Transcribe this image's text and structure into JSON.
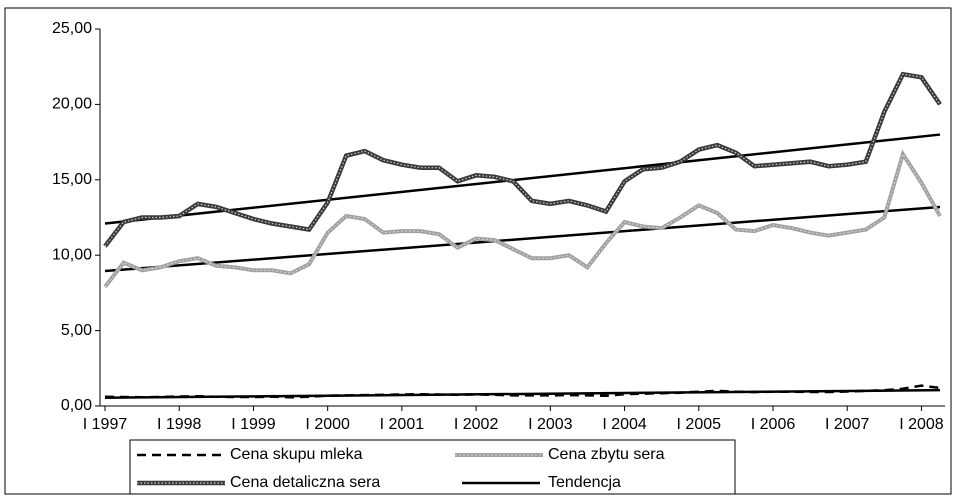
{
  "chart_data": {
    "type": "line",
    "categories": [
      "I 1997",
      null,
      null,
      null,
      "I 1998",
      null,
      null,
      null,
      "I 1999",
      null,
      null,
      null,
      "I 2000",
      null,
      null,
      null,
      "I 2001",
      null,
      null,
      null,
      "I 2002",
      null,
      null,
      null,
      "I 2003",
      null,
      null,
      null,
      "I 2004",
      null,
      null,
      null,
      "I 2005",
      null,
      null,
      null,
      "I 2006",
      null,
      null,
      null,
      "I 2007",
      null,
      null,
      null,
      "I 2008",
      null
    ],
    "series": [
      {
        "name": "Cena skupu mleka",
        "color": "#000000",
        "style": "dashed",
        "values": [
          0.62,
          0.6,
          0.58,
          0.6,
          0.63,
          0.64,
          0.62,
          0.6,
          0.6,
          0.62,
          0.58,
          0.62,
          0.68,
          0.7,
          0.72,
          0.74,
          0.76,
          0.78,
          0.76,
          0.74,
          0.76,
          0.74,
          0.7,
          0.7,
          0.7,
          0.72,
          0.7,
          0.68,
          0.78,
          0.82,
          0.85,
          0.88,
          0.95,
          1.0,
          0.95,
          0.92,
          0.95,
          0.95,
          0.93,
          0.93,
          0.96,
          1.0,
          1.05,
          1.15,
          1.35,
          1.2
        ]
      },
      {
        "name": "Cena zbytu sera",
        "color": "#a0a0a0",
        "style": "solid",
        "values": [
          7.9,
          9.5,
          9.0,
          9.2,
          9.6,
          9.8,
          9.3,
          9.2,
          9.0,
          9.0,
          8.8,
          9.4,
          11.5,
          12.6,
          12.4,
          11.5,
          11.6,
          11.6,
          11.4,
          10.5,
          11.1,
          11.0,
          10.4,
          9.8,
          9.8,
          10.0,
          9.2,
          10.8,
          12.2,
          11.9,
          11.8,
          12.5,
          13.3,
          12.8,
          11.7,
          11.6,
          12.0,
          11.8,
          11.5,
          11.3,
          11.5,
          11.7,
          12.5,
          16.7,
          14.8,
          12.6
        ]
      },
      {
        "name": "Cena detaliczna sera",
        "color": "#3a3a3a",
        "style": "checkered",
        "values": [
          10.6,
          12.2,
          12.5,
          12.5,
          12.6,
          13.4,
          13.2,
          12.8,
          12.4,
          12.1,
          11.9,
          11.7,
          13.5,
          16.6,
          16.9,
          16.3,
          16.0,
          15.8,
          15.8,
          14.9,
          15.3,
          15.2,
          14.9,
          13.6,
          13.4,
          13.6,
          13.3,
          12.9,
          14.9,
          15.7,
          15.8,
          16.2,
          17.0,
          17.3,
          16.8,
          15.9,
          16.0,
          16.1,
          16.2,
          15.9,
          16.0,
          16.2,
          19.5,
          22.0,
          21.8,
          20.0
        ]
      }
    ],
    "trend_name": "Tendencja",
    "trend_color": "#000000",
    "trendlines": [
      {
        "values": [
          0.55,
          1.05
        ]
      },
      {
        "values": [
          8.95,
          13.2
        ]
      },
      {
        "values": [
          12.1,
          18.0
        ]
      }
    ],
    "ylim": [
      0,
      25
    ],
    "yticks": [
      {
        "value": 0,
        "label": "0,00"
      },
      {
        "value": 5,
        "label": "5,00"
      },
      {
        "value": 10,
        "label": "10,00"
      },
      {
        "value": 15,
        "label": "15,00"
      },
      {
        "value": 20,
        "label": "20,00"
      },
      {
        "value": 25,
        "label": "25,00"
      }
    ],
    "grid": false,
    "legend": "bottom"
  }
}
